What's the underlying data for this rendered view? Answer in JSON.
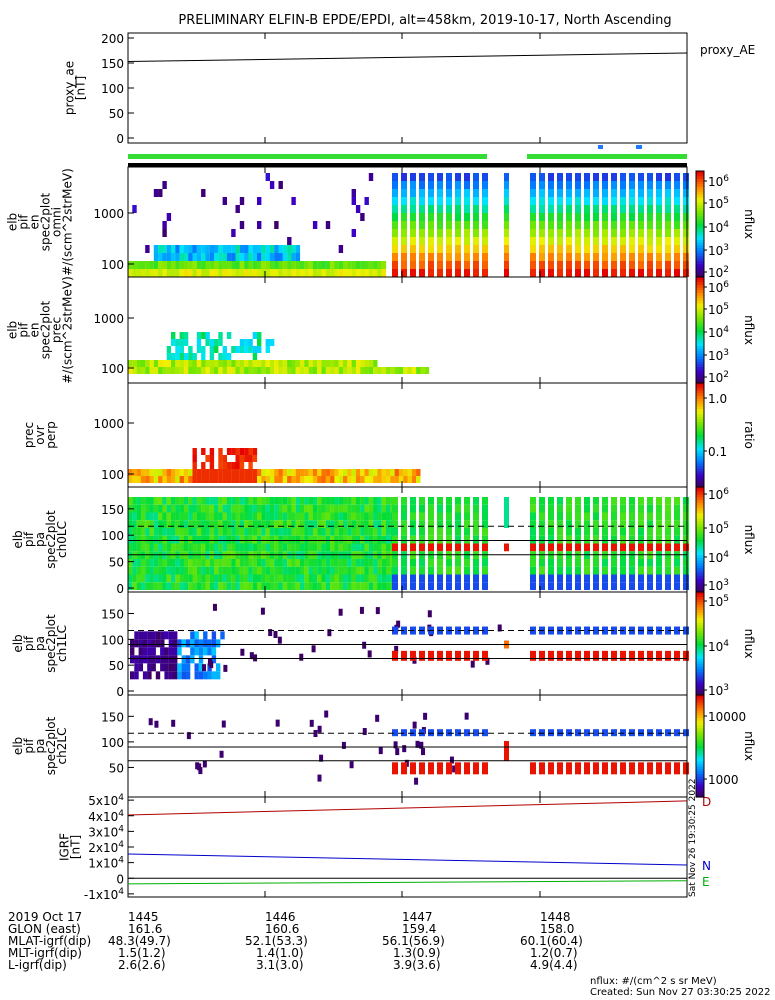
{
  "title": "PRELIMINARY ELFIN-B EPDE/EPDI, alt=458km, 2019-10-17, North Ascending",
  "colors": {
    "trace_black": "#000000",
    "trace_red": "#b00000",
    "trace_blue": "#0000cc",
    "trace_green": "#00b000",
    "status_green": "#33dd33",
    "status_blue": "#1e7bff"
  },
  "chart_data": [
    {
      "type": "line",
      "panel": "proxy_ae",
      "ylabel": "proxy_ae\n[nT]",
      "legend": "proxy_AE",
      "ylim": [
        -10,
        210
      ],
      "yticks": [
        "0",
        "50",
        "100",
        "150",
        "200"
      ],
      "series": [
        {
          "name": "proxy_AE",
          "x": [
            0,
            1
          ],
          "values": [
            153,
            170
          ]
        }
      ]
    },
    {
      "type": "heatmap",
      "panel": "spec2plot_omni",
      "ylabel": "elb\npif\nen\nspec2plot\nomni\n#/(scm^2strMeV)",
      "yticks": [
        "100",
        "1000"
      ],
      "colorbar": {
        "label": "nflux",
        "ticks": [
          "10^6",
          "10^5",
          "10^4",
          "10^3",
          "10^2"
        ]
      }
    },
    {
      "type": "heatmap",
      "panel": "spec2plot_prec",
      "ylabel": "elb\npif\nen\nspec2plot\nprec\n#/(scm^2strMeV)",
      "yticks": [
        "100",
        "1000"
      ],
      "colorbar": {
        "label": "nflux",
        "ticks": [
          "10^6",
          "10^5",
          "10^4",
          "10^3",
          "10^2"
        ]
      }
    },
    {
      "type": "heatmap",
      "panel": "prec_ovr_perp",
      "ylabel": "prec\novr\nperp",
      "yticks": [
        "100",
        "1000"
      ],
      "colorbar": {
        "label": "ratio",
        "ticks": [
          "1.0",
          "0.1"
        ]
      }
    },
    {
      "type": "heatmap",
      "panel": "spec2plot_ch0LC",
      "ylabel": "elb\npif\npa\nspec2plot\nch0LC",
      "yticks": [
        "0",
        "50",
        "100",
        "150"
      ],
      "colorbar": {
        "label": "nflux",
        "ticks": [
          "10^6",
          "10^5",
          "10^4",
          "10^3"
        ]
      }
    },
    {
      "type": "heatmap",
      "panel": "spec2plot_ch1LC",
      "ylabel": "elb\npif\npa\nspec2plot\nch1LC",
      "yticks": [
        "0",
        "50",
        "100",
        "150"
      ],
      "colorbar": {
        "label": "nflux",
        "ticks": [
          "10^5",
          "10^4",
          "10^3"
        ]
      }
    },
    {
      "type": "heatmap",
      "panel": "spec2plot_ch2LC",
      "ylabel": "elb\npif\npa\nspec2plot\nch2LC",
      "yticks": [
        "50",
        "100",
        "150"
      ],
      "colorbar": {
        "label": "nflux",
        "ticks": [
          "10000",
          "1000"
        ]
      }
    },
    {
      "type": "line",
      "panel": "IGRF",
      "ylabel": "IGRF\n[nT]",
      "ylim": [
        -12000,
        52000
      ],
      "yticks": [
        "-1x10^4",
        "0",
        "1x10^4",
        "2x10^4",
        "3x10^4",
        "4x10^4",
        "5x10^4"
      ],
      "series": [
        {
          "name": "D",
          "x": [
            0,
            1
          ],
          "values": [
            40500,
            49500
          ]
        },
        {
          "name": "N",
          "x": [
            0,
            1
          ],
          "values": [
            15500,
            8500
          ]
        },
        {
          "name": "E",
          "x": [
            0,
            1
          ],
          "values": [
            -3600,
            -1600
          ]
        }
      ]
    }
  ],
  "footer": {
    "date": "2019 Oct 17",
    "rows": [
      {
        "label": "GLON (east)",
        "values": [
          "161.6",
          "160.6",
          "159.4",
          "158.0"
        ]
      },
      {
        "label": "MLAT-igrf(dip)",
        "values": [
          "48.3(49.7)",
          "52.1(53.3)",
          "56.1(56.9)",
          "60.1(60.4)"
        ]
      },
      {
        "label": "MLT-igrf(dip)",
        "values": [
          "1.5(1.2)",
          "1.4(1.0)",
          "1.3(0.9)",
          "1.2(0.7)"
        ]
      },
      {
        "label": "L-igrf(dip)",
        "values": [
          "2.6(2.6)",
          "3.1(3.0)",
          "3.9(3.6)",
          "4.9(4.4)"
        ]
      }
    ],
    "times": [
      "1445",
      "1446",
      "1447",
      "1448"
    ],
    "units_note": "nflux: #/(cm^2 s sr MeV)",
    "created": "Created: Sun Nov 27 03:30:25 2022",
    "side_stamp": "Sat Nov 26 19:30:25 2022"
  }
}
